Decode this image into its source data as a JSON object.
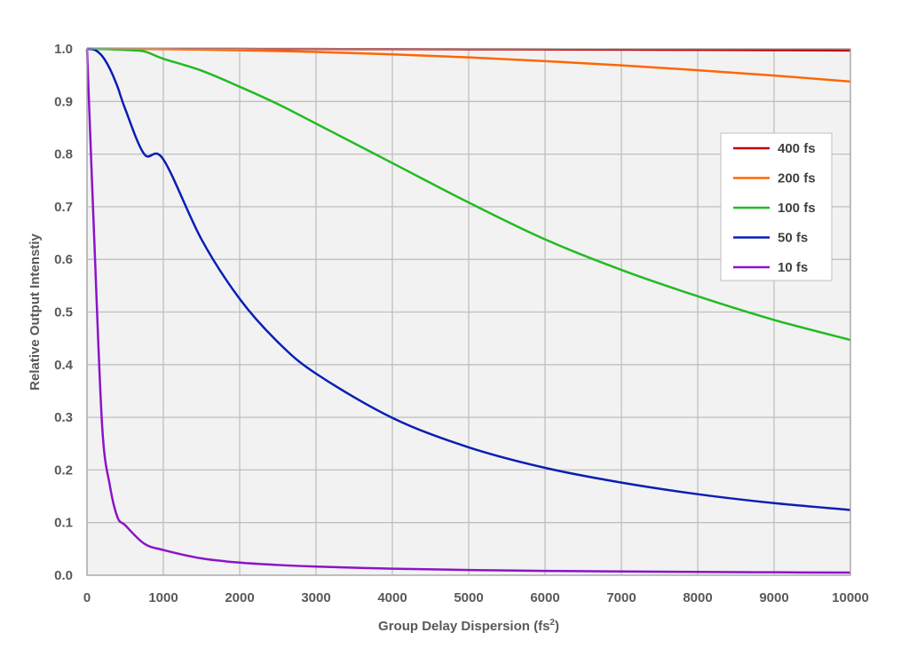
{
  "chart_data": {
    "type": "line",
    "title": "",
    "xlabel": "Group Delay Dispersion (fs",
    "xlabel_sup": "2",
    "xlabel_close": ")",
    "ylabel": "Relative Output Intenstiy",
    "xlim": [
      0,
      10000
    ],
    "ylim": [
      0,
      1.0
    ],
    "x_ticks": [
      0,
      1000,
      2000,
      3000,
      4000,
      5000,
      6000,
      7000,
      8000,
      9000,
      10000
    ],
    "x_tick_labels": [
      "0",
      "1000",
      "2000",
      "3000",
      "4000",
      "5000",
      "6000",
      "7000",
      "8000",
      "9000",
      "10000"
    ],
    "y_ticks": [
      0,
      0.1,
      0.2,
      0.3,
      0.4,
      0.5,
      0.6,
      0.7,
      0.8,
      0.9,
      1.0
    ],
    "y_tick_labels": [
      "0.0",
      "0.1",
      "0.2",
      "0.3",
      "0.4",
      "0.5",
      "0.6",
      "0.7",
      "0.8",
      "0.9",
      "1.0"
    ],
    "grid": true,
    "legend_position": "right",
    "x": [
      0,
      100,
      200,
      300,
      400,
      500,
      750,
      1000,
      1500,
      2000,
      2500,
      3000,
      4000,
      5000,
      6000,
      7000,
      8000,
      9000,
      10000
    ],
    "series": [
      {
        "name": "400 fs",
        "color": "#C00000",
        "values": [
          1.0,
          1.0,
          1.0,
          1.0,
          1.0,
          1.0,
          1.0,
          1.0,
          1.0,
          0.9999,
          0.9998,
          0.9997,
          0.9995,
          0.9992,
          0.9989,
          0.9985,
          0.998,
          0.9975,
          0.9969
        ]
      },
      {
        "name": "200 fs",
        "color": "#FF6600",
        "values": [
          1.0,
          1.0,
          1.0,
          1.0,
          0.9999,
          0.9998,
          0.9996,
          0.9993,
          0.9985,
          0.9973,
          0.9958,
          0.994,
          0.9895,
          0.9837,
          0.9767,
          0.9686,
          0.9594,
          0.9492,
          0.9379
        ]
      },
      {
        "name": "100 fs",
        "color": "#22BB22",
        "values": [
          1.0,
          0.9999,
          0.9996,
          0.9992,
          0.9986,
          0.9978,
          0.995,
          0.9812,
          0.9586,
          0.928,
          0.895,
          0.858,
          0.783,
          0.708,
          0.638,
          0.58,
          0.53,
          0.485,
          0.447
        ]
      },
      {
        "name": "50 fs",
        "color": "#0A1EB4",
        "values": [
          1.0,
          0.998,
          0.986,
          0.962,
          0.928,
          0.886,
          0.8,
          0.79,
          0.638,
          0.525,
          0.443,
          0.383,
          0.299,
          0.243,
          0.204,
          0.176,
          0.154,
          0.137,
          0.124
        ]
      },
      {
        "name": "10 fs",
        "color": "#8B14C8",
        "values": [
          1.0,
          0.62,
          0.28,
          0.17,
          0.11,
          0.095,
          0.06,
          0.048,
          0.032,
          0.024,
          0.0195,
          0.0165,
          0.0125,
          0.01,
          0.0083,
          0.0072,
          0.0063,
          0.0056,
          0.005
        ]
      }
    ]
  }
}
